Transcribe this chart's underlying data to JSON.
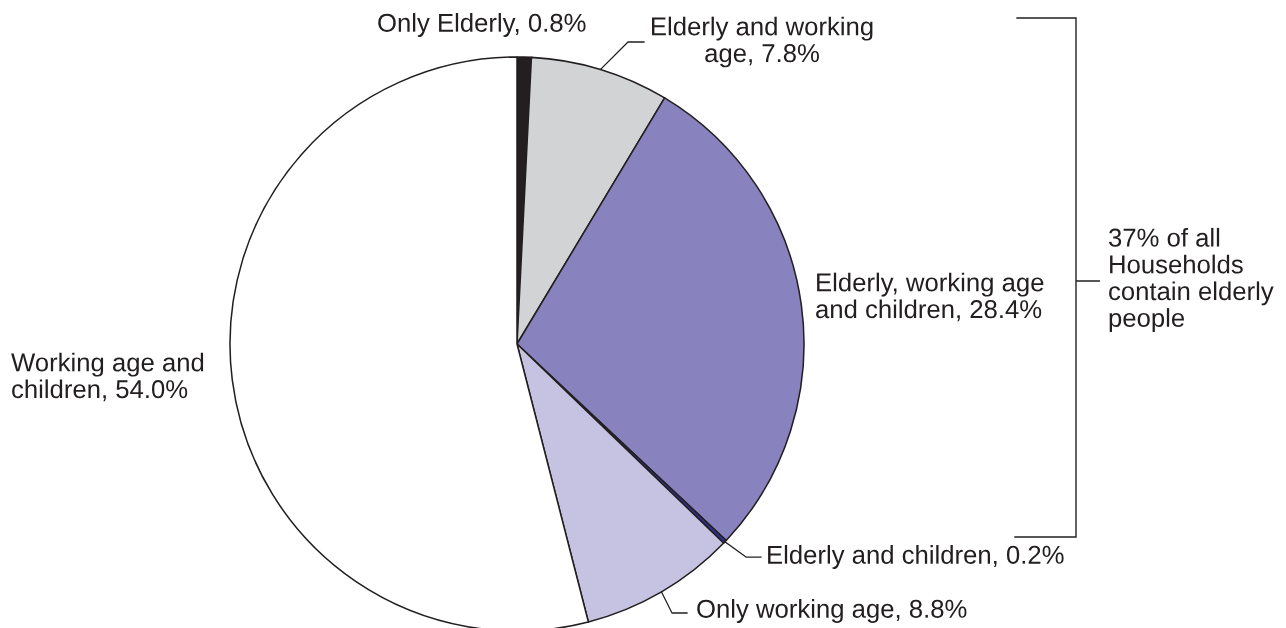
{
  "chart_data": {
    "type": "pie",
    "categories": [
      "Only Elderly",
      "Elderly and working age",
      "Elderly, working age and children",
      "Elderly and children",
      "Only working age",
      "Working age and children"
    ],
    "values": [
      0.8,
      7.8,
      28.4,
      0.2,
      8.8,
      54.0
    ],
    "value_labels": [
      "0.8%",
      "7.8%",
      "28.4%",
      "0.2%",
      "8.8%",
      "54.0%"
    ],
    "colors": [
      "#231f20",
      "#d1d3d4",
      "#8882be",
      "#2e3192",
      "#c5c3e1",
      "#ffffff"
    ],
    "annotations": [
      "37% of all Households contain elderly people"
    ]
  }
}
